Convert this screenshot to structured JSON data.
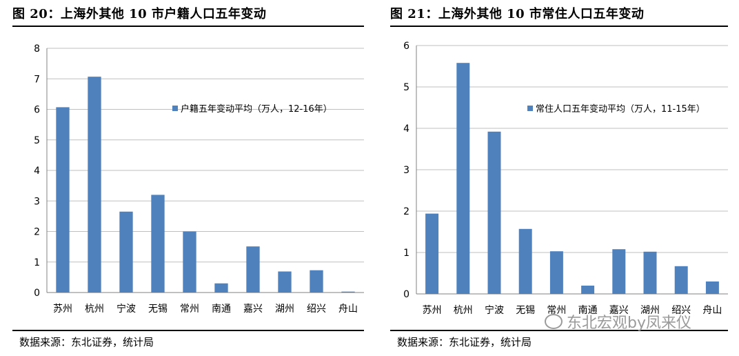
{
  "watermark": "东北宏观by凤来仪",
  "chart_data": [
    {
      "type": "bar",
      "title": "图 20：上海外其他 10 市户籍人口五年变动",
      "source": "数据来源：东北证券，统计局",
      "categories": [
        "苏州",
        "杭州",
        "宁波",
        "无锡",
        "常州",
        "南通",
        "嘉兴",
        "湖州",
        "绍兴",
        "舟山"
      ],
      "series": [
        {
          "name": "户籍五年变动平均（万人，12-16年）",
          "values": [
            6.07,
            7.07,
            2.65,
            3.2,
            2.0,
            0.3,
            1.51,
            0.69,
            0.73,
            0.03
          ],
          "color": "#4F81BD"
        }
      ],
      "ylim": [
        0,
        8
      ],
      "yticks": [
        0,
        1,
        2,
        3,
        4,
        5,
        6,
        7,
        8
      ],
      "grid": true,
      "legend_position": "center-right"
    },
    {
      "type": "bar",
      "title": "图 21：上海外其他 10 市常住人口五年变动",
      "source": "数据来源：东北证券，统计局",
      "categories": [
        "苏州",
        "杭州",
        "宁波",
        "无锡",
        "常州",
        "南通",
        "嘉兴",
        "湖州",
        "绍兴",
        "舟山"
      ],
      "series": [
        {
          "name": "常住人口五年变动平均（万人，11-15年）",
          "values": [
            1.94,
            5.58,
            3.92,
            1.57,
            1.03,
            0.2,
            1.08,
            1.02,
            0.67,
            0.3
          ],
          "color": "#4F81BD"
        }
      ],
      "ylim": [
        0,
        6
      ],
      "yticks": [
        0,
        1,
        2,
        3,
        4,
        5,
        6
      ],
      "grid": true,
      "legend_position": "center-right"
    }
  ]
}
